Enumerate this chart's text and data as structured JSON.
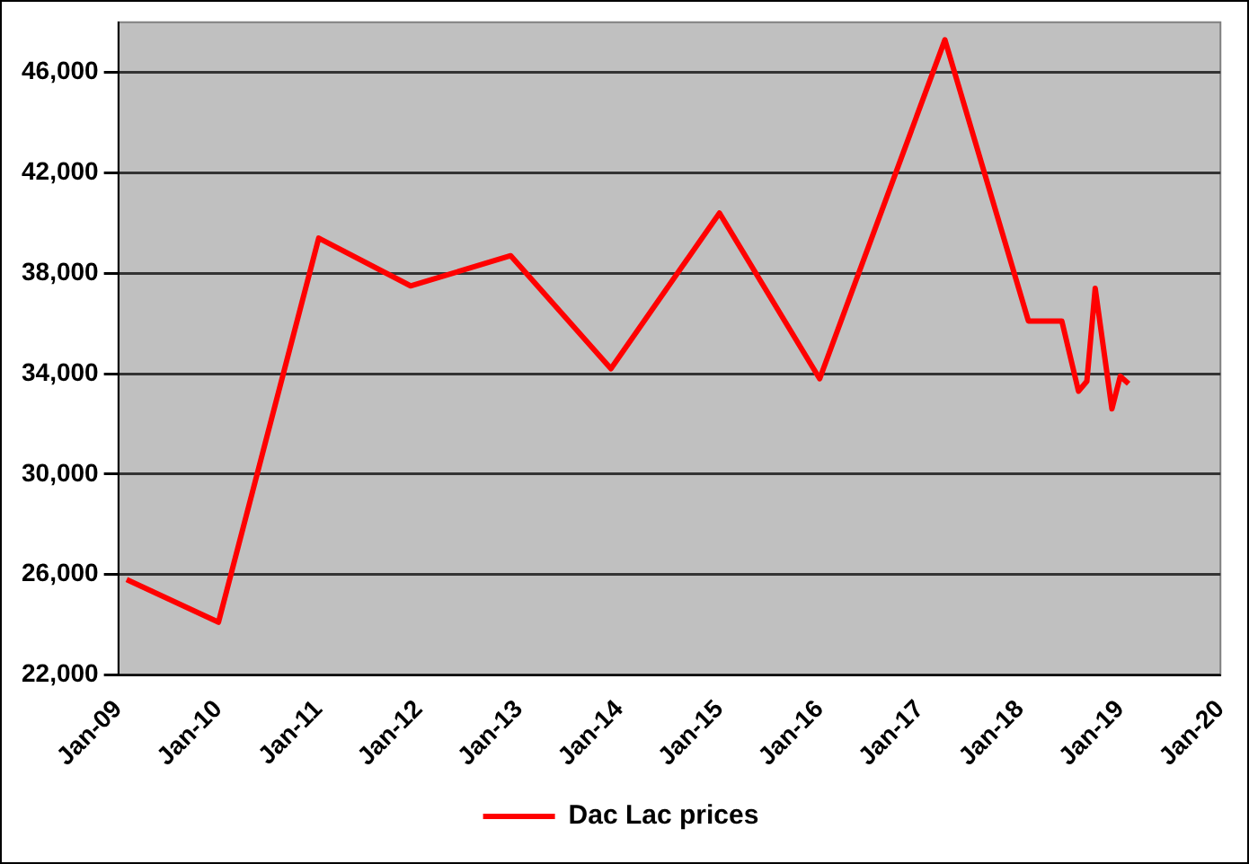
{
  "chart_data": {
    "type": "line",
    "x": [
      "2009-02",
      "2010-01",
      "2011-01",
      "2011-12",
      "2012-12",
      "2013-12",
      "2015-01",
      "2016-01",
      "2017-04",
      "2018-02",
      "2018-06",
      "2018-08",
      "2018-09",
      "2018-10",
      "2018-12",
      "2019-01",
      "2019-02"
    ],
    "series": [
      {
        "name": "Dac Lac prices",
        "color": "#ff0000",
        "values": [
          25800,
          24100,
          39400,
          37500,
          38700,
          34200,
          40400,
          33800,
          47300,
          36100,
          36100,
          33300,
          33700,
          37400,
          32600,
          33900,
          33600
        ]
      }
    ],
    "xlim": [
      "2009-01",
      "2020-01"
    ],
    "xticks": [
      {
        "value": "2009-01",
        "label": "Jan-09"
      },
      {
        "value": "2010-01",
        "label": "Jan-10"
      },
      {
        "value": "2011-01",
        "label": "Jan-11"
      },
      {
        "value": "2012-01",
        "label": "Jan-12"
      },
      {
        "value": "2013-01",
        "label": "Jan-13"
      },
      {
        "value": "2014-01",
        "label": "Jan-14"
      },
      {
        "value": "2015-01",
        "label": "Jan-15"
      },
      {
        "value": "2016-01",
        "label": "Jan-16"
      },
      {
        "value": "2017-01",
        "label": "Jan-17"
      },
      {
        "value": "2018-01",
        "label": "Jan-18"
      },
      {
        "value": "2019-01",
        "label": "Jan-19"
      },
      {
        "value": "2020-01",
        "label": "Jan-20"
      }
    ],
    "ylim": [
      22000,
      48000
    ],
    "yticks": [
      {
        "value": 22000,
        "label": "22,000"
      },
      {
        "value": 26000,
        "label": "26,000"
      },
      {
        "value": 30000,
        "label": "30,000"
      },
      {
        "value": 34000,
        "label": "34,000"
      },
      {
        "value": 38000,
        "label": "38,000"
      },
      {
        "value": 42000,
        "label": "42,000"
      },
      {
        "value": 46000,
        "label": "46,000"
      }
    ],
    "grid": "y",
    "legend": "bottom",
    "marker": "none",
    "line_style": "solid"
  }
}
